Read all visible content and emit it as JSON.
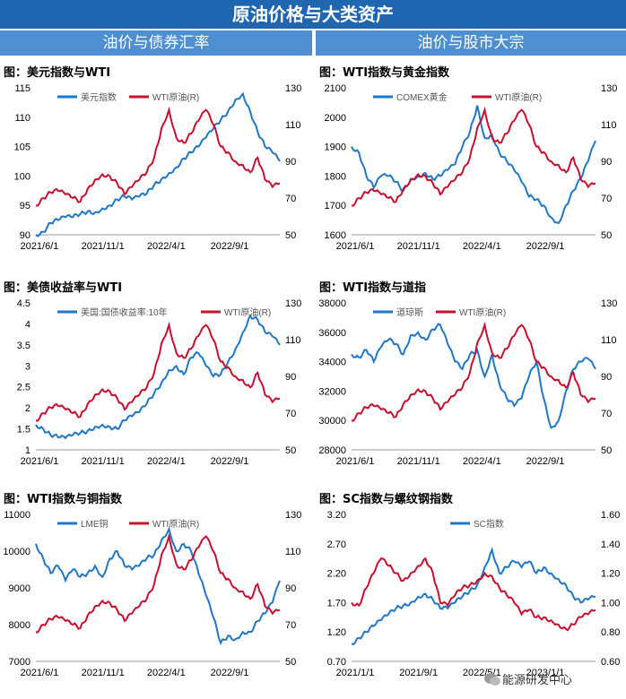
{
  "header": {
    "title": "原油价格与大类资产"
  },
  "sections": [
    {
      "label": "油价与债券汇率"
    },
    {
      "label": "油价与股市大宗"
    }
  ],
  "watermark": {
    "text": "能源研发中心"
  },
  "colors": {
    "blue": "#1f77c9",
    "red": "#c8102e",
    "header": "#1f66b0",
    "section": "#4d8fd0"
  },
  "chart_data": [
    {
      "type": "line",
      "title": "图：美元指数与WTI",
      "x_ticks": [
        "2021/6/1",
        "2021/11/1",
        "2022/4/1",
        "2022/9/1"
      ],
      "left_axis": {
        "ylim": [
          90,
          115
        ],
        "ticks": [
          "90",
          "95",
          "100",
          "105",
          "110",
          "115"
        ]
      },
      "right_axis": {
        "ylim": [
          50,
          130
        ],
        "ticks": [
          "50",
          "70",
          "90",
          "110",
          "130"
        ]
      },
      "series": [
        {
          "name": "美元指数",
          "axis": "left",
          "color": "blue",
          "values": [
            90.0,
            90.5,
            92.0,
            92.5,
            93.0,
            93.0,
            93.5,
            94.0,
            93.8,
            94.5,
            95.0,
            96.0,
            96.5,
            96.0,
            96.5,
            97.0,
            98.5,
            99.5,
            100.5,
            101.5,
            103.0,
            104.0,
            105.0,
            106.5,
            108.0,
            109.5,
            111.0,
            113.0,
            114.0,
            111.0,
            107.5,
            105.0,
            104.0,
            102.5
          ]
        },
        {
          "name": "WTI原油(R)",
          "axis": "right",
          "color": "red",
          "values": [
            66,
            70,
            73,
            74,
            72,
            70,
            68,
            75,
            80,
            83,
            82,
            78,
            72,
            76,
            80,
            84,
            92,
            108,
            118,
            103,
            100,
            105,
            112,
            118,
            110,
            98,
            95,
            90,
            88,
            84,
            92,
            80,
            76,
            78
          ]
        }
      ]
    },
    {
      "type": "line",
      "title": "图：WTI指数与黄金指数",
      "x_ticks": [
        "2021/6/1",
        "2021/11/1",
        "2022/4/1",
        "2022/9/1"
      ],
      "left_axis": {
        "ylim": [
          1600,
          2100
        ],
        "ticks": [
          "1600",
          "1700",
          "1800",
          "1900",
          "2000",
          "2100"
        ]
      },
      "right_axis": {
        "ylim": [
          50,
          130
        ],
        "ticks": [
          "50",
          "70",
          "90",
          "110",
          "130"
        ]
      },
      "series": [
        {
          "name": "COMEX黄金",
          "axis": "left",
          "color": "blue",
          "values": [
            1900,
            1880,
            1800,
            1760,
            1800,
            1800,
            1780,
            1750,
            1790,
            1800,
            1810,
            1790,
            1800,
            1820,
            1840,
            1900,
            1950,
            2040,
            1930,
            1940,
            1880,
            1850,
            1820,
            1780,
            1730,
            1720,
            1700,
            1660,
            1640,
            1700,
            1750,
            1790,
            1850,
            1920
          ]
        },
        {
          "name": "WTI原油(R)",
          "axis": "right",
          "color": "red",
          "values": [
            66,
            70,
            73,
            74,
            72,
            70,
            68,
            75,
            80,
            83,
            82,
            78,
            72,
            76,
            80,
            84,
            92,
            108,
            118,
            103,
            100,
            105,
            112,
            118,
            110,
            98,
            95,
            90,
            88,
            84,
            92,
            80,
            76,
            78
          ]
        }
      ]
    },
    {
      "type": "line",
      "title": "图：美债收益率与WTI",
      "x_ticks": [
        "2021/6/1",
        "2021/11/1",
        "2022/4/1",
        "2022/9/1"
      ],
      "left_axis": {
        "ylim": [
          1.0,
          4.5
        ],
        "ticks": [
          "1",
          "1.5",
          "2",
          "2.5",
          "3",
          "3.5",
          "4",
          "4.5"
        ]
      },
      "right_axis": {
        "ylim": [
          50,
          130
        ],
        "ticks": [
          "50",
          "70",
          "90",
          "110",
          "130"
        ]
      },
      "series": [
        {
          "name": "美国:国债收益率:10年",
          "axis": "left",
          "color": "blue",
          "values": [
            1.6,
            1.5,
            1.35,
            1.3,
            1.28,
            1.35,
            1.4,
            1.45,
            1.55,
            1.6,
            1.55,
            1.5,
            1.7,
            1.8,
            1.9,
            2.1,
            2.35,
            2.6,
            2.9,
            3.0,
            2.8,
            3.2,
            3.3,
            3.0,
            2.75,
            2.8,
            3.1,
            3.4,
            3.8,
            4.2,
            4.1,
            3.8,
            3.7,
            3.5
          ]
        },
        {
          "name": "WTI原油(R)",
          "axis": "right",
          "color": "red",
          "values": [
            66,
            70,
            73,
            74,
            72,
            70,
            68,
            75,
            80,
            83,
            82,
            78,
            72,
            76,
            80,
            84,
            92,
            108,
            118,
            103,
            100,
            105,
            112,
            118,
            110,
            98,
            95,
            90,
            88,
            84,
            92,
            80,
            76,
            78
          ]
        }
      ]
    },
    {
      "type": "line",
      "title": "图：WTI指数与道指",
      "x_ticks": [
        "2021/6/1",
        "2021/11/1",
        "2022/4/1",
        "2022/9/1"
      ],
      "left_axis": {
        "ylim": [
          28000,
          38000
        ],
        "ticks": [
          "28000",
          "30000",
          "32000",
          "34000",
          "36000",
          "38000"
        ]
      },
      "right_axis": {
        "ylim": [
          50,
          130
        ],
        "ticks": [
          "50",
          "70",
          "90",
          "110",
          "130"
        ]
      },
      "series": [
        {
          "name": "道琼斯",
          "axis": "left",
          "color": "blue",
          "values": [
            34500,
            34300,
            34800,
            34000,
            35000,
            35500,
            35200,
            34500,
            35800,
            36000,
            35500,
            36200,
            36500,
            35200,
            34000,
            33500,
            34500,
            34800,
            33000,
            34500,
            32500,
            31500,
            31000,
            31500,
            33000,
            34000,
            31500,
            29500,
            30000,
            32000,
            33500,
            34000,
            34200,
            33500
          ]
        },
        {
          "name": "WTI原油(R)",
          "axis": "right",
          "color": "red",
          "values": [
            66,
            70,
            73,
            74,
            72,
            70,
            68,
            75,
            80,
            83,
            82,
            78,
            72,
            76,
            80,
            84,
            92,
            108,
            118,
            103,
            100,
            105,
            112,
            118,
            110,
            98,
            95,
            90,
            88,
            84,
            92,
            80,
            76,
            78
          ]
        }
      ]
    },
    {
      "type": "line",
      "title": "图：WTI指数与铜指数",
      "x_ticks": [
        "2021/6/1",
        "2021/11/1",
        "2022/4/1",
        "2022/9/1"
      ],
      "left_axis": {
        "ylim": [
          7000,
          11000
        ],
        "ticks": [
          "7000",
          "8000",
          "9000",
          "10000",
          "11000"
        ]
      },
      "right_axis": {
        "ylim": [
          50,
          130
        ],
        "ticks": [
          "50",
          "70",
          "90",
          "110",
          "130"
        ]
      },
      "series": [
        {
          "name": "LME铜",
          "axis": "left",
          "color": "blue",
          "values": [
            10200,
            9800,
            9400,
            9600,
            9200,
            9500,
            9300,
            9400,
            9600,
            9300,
            9800,
            10000,
            9600,
            9500,
            9600,
            9800,
            9900,
            10300,
            10600,
            10000,
            10200,
            10000,
            9400,
            8800,
            8200,
            7500,
            7700,
            7600,
            7800,
            7800,
            8100,
            8300,
            8600,
            9200
          ]
        },
        {
          "name": "WTI原油(R)",
          "axis": "right",
          "color": "red",
          "values": [
            66,
            70,
            73,
            74,
            72,
            70,
            68,
            75,
            80,
            83,
            82,
            78,
            72,
            76,
            80,
            84,
            92,
            108,
            118,
            103,
            100,
            105,
            112,
            118,
            110,
            98,
            95,
            90,
            88,
            84,
            92,
            80,
            76,
            78
          ]
        }
      ]
    },
    {
      "type": "line",
      "title": "图：SC指数与螺纹钢指数",
      "x_ticks": [
        "2021/1/1",
        "2021/9/1",
        "2022/5/1",
        "2023/1/1"
      ],
      "left_axis": {
        "ylim": [
          0.7,
          3.2
        ],
        "ticks": [
          "0.70",
          "1.20",
          "1.70",
          "2.20",
          "2.70",
          "3.20"
        ]
      },
      "right_axis": {
        "ylim": [
          0.6,
          1.6
        ],
        "ticks": [
          "0.60",
          "0.80",
          "1.00",
          "1.20",
          "1.40",
          "1.60"
        ]
      },
      "series": [
        {
          "name": "SC指数",
          "axis": "left",
          "color": "blue",
          "values": [
            1.0,
            1.1,
            1.2,
            1.3,
            1.4,
            1.5,
            1.6,
            1.65,
            1.7,
            1.8,
            1.85,
            1.75,
            1.6,
            1.6,
            1.7,
            1.8,
            1.9,
            2.0,
            2.3,
            2.6,
            2.2,
            2.3,
            2.4,
            2.3,
            2.4,
            2.2,
            2.3,
            2.2,
            2.1,
            2.0,
            1.8,
            1.7,
            1.75,
            1.8
          ]
        },
        {
          "name": "",
          "axis": "right",
          "color": "red",
          "values": [
            1.0,
            0.98,
            1.1,
            1.2,
            1.3,
            1.25,
            1.2,
            1.15,
            1.2,
            1.25,
            1.3,
            1.2,
            1.0,
            0.98,
            1.05,
            1.1,
            1.12,
            1.15,
            1.2,
            1.18,
            1.1,
            1.05,
            1.0,
            0.92,
            0.95,
            0.9,
            0.9,
            0.88,
            0.85,
            0.82,
            0.85,
            0.9,
            0.92,
            0.95
          ]
        }
      ]
    }
  ]
}
